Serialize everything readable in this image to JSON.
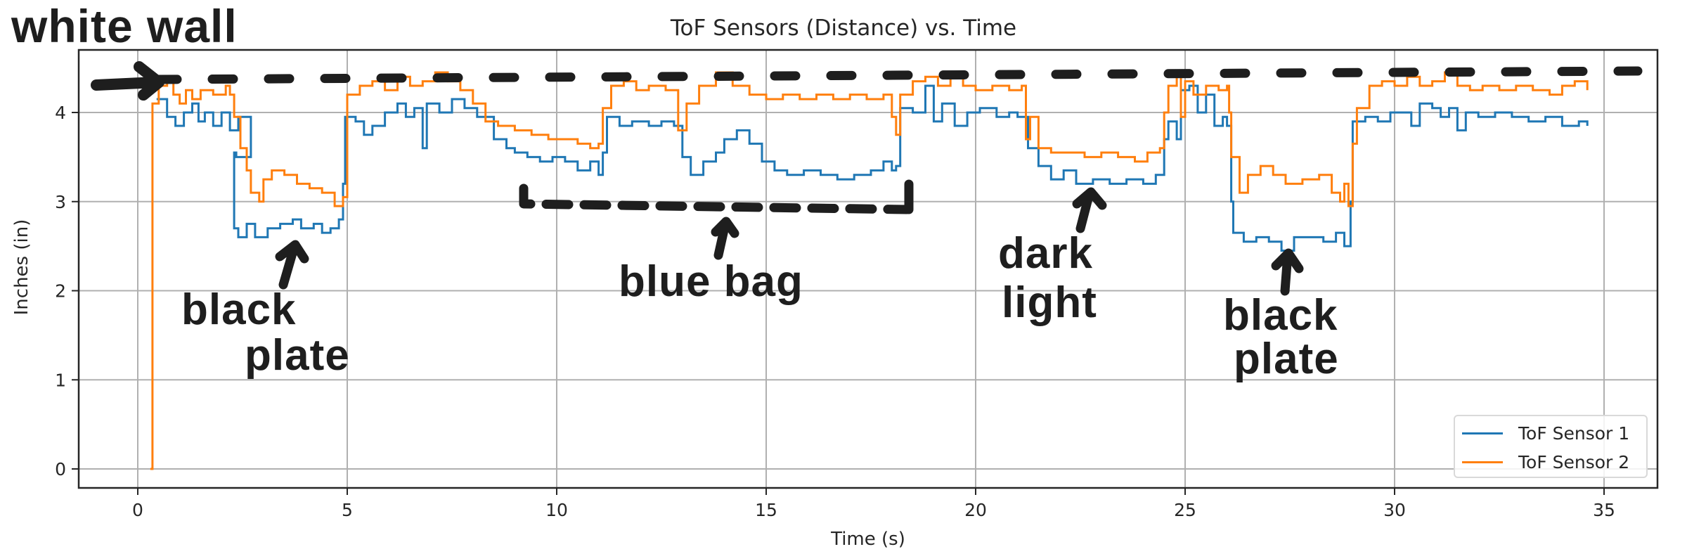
{
  "chart_data": {
    "type": "line",
    "title": "ToF Sensors (Distance) vs. Time",
    "xlabel": "Time (s)",
    "ylabel": "Inches (in)",
    "xlim": [
      -1.4,
      36.3
    ],
    "ylim": [
      -0.22,
      4.69
    ],
    "xticks": [
      0,
      5,
      10,
      15,
      20,
      25,
      30,
      35
    ],
    "yticks": [
      0,
      1,
      2,
      3,
      4
    ],
    "grid": true,
    "legend_position": "lower right",
    "drawstyle": "steps",
    "series": [
      {
        "name": "ToF Sensor 1",
        "color": "#1f77b4",
        "points": [
          [
            0.45,
            4.15
          ],
          [
            0.7,
            3.95
          ],
          [
            0.9,
            3.85
          ],
          [
            1.1,
            4.0
          ],
          [
            1.3,
            4.1
          ],
          [
            1.45,
            3.9
          ],
          [
            1.6,
            4.0
          ],
          [
            1.8,
            3.85
          ],
          [
            2.0,
            4.0
          ],
          [
            2.2,
            3.8
          ],
          [
            2.4,
            3.95
          ],
          [
            2.7,
            3.5
          ],
          [
            2.35,
            3.55
          ],
          [
            2.3,
            2.7
          ],
          [
            2.4,
            2.6
          ],
          [
            2.6,
            2.75
          ],
          [
            2.8,
            2.6
          ],
          [
            3.1,
            2.7
          ],
          [
            3.4,
            2.75
          ],
          [
            3.7,
            2.8
          ],
          [
            3.9,
            2.7
          ],
          [
            4.2,
            2.75
          ],
          [
            4.4,
            2.65
          ],
          [
            4.6,
            2.7
          ],
          [
            4.8,
            2.8
          ],
          [
            4.9,
            3.2
          ],
          [
            4.95,
            3.95
          ],
          [
            5.2,
            3.9
          ],
          [
            5.4,
            3.75
          ],
          [
            5.6,
            3.85
          ],
          [
            5.9,
            4.0
          ],
          [
            6.2,
            4.1
          ],
          [
            6.4,
            3.95
          ],
          [
            6.6,
            4.05
          ],
          [
            6.8,
            3.6
          ],
          [
            6.9,
            4.1
          ],
          [
            7.2,
            4.0
          ],
          [
            7.5,
            4.15
          ],
          [
            7.8,
            4.05
          ],
          [
            8.1,
            3.95
          ],
          [
            8.5,
            3.7
          ],
          [
            8.8,
            3.6
          ],
          [
            9.0,
            3.55
          ],
          [
            9.3,
            3.5
          ],
          [
            9.6,
            3.45
          ],
          [
            9.9,
            3.5
          ],
          [
            10.2,
            3.45
          ],
          [
            10.5,
            3.35
          ],
          [
            10.8,
            3.45
          ],
          [
            11.0,
            3.3
          ],
          [
            11.1,
            3.55
          ],
          [
            11.2,
            3.95
          ],
          [
            11.5,
            3.85
          ],
          [
            11.8,
            3.9
          ],
          [
            12.2,
            3.85
          ],
          [
            12.5,
            3.9
          ],
          [
            12.8,
            3.85
          ],
          [
            13.0,
            3.5
          ],
          [
            13.2,
            3.3
          ],
          [
            13.5,
            3.45
          ],
          [
            13.8,
            3.55
          ],
          [
            14.0,
            3.7
          ],
          [
            14.3,
            3.8
          ],
          [
            14.6,
            3.65
          ],
          [
            14.9,
            3.45
          ],
          [
            15.2,
            3.35
          ],
          [
            15.5,
            3.3
          ],
          [
            15.9,
            3.35
          ],
          [
            16.3,
            3.3
          ],
          [
            16.7,
            3.25
          ],
          [
            17.1,
            3.3
          ],
          [
            17.5,
            3.35
          ],
          [
            17.8,
            3.45
          ],
          [
            18.0,
            3.35
          ],
          [
            18.1,
            3.4
          ],
          [
            18.2,
            4.05
          ],
          [
            18.5,
            4.0
          ],
          [
            18.8,
            4.3
          ],
          [
            19.0,
            3.9
          ],
          [
            19.2,
            4.1
          ],
          [
            19.5,
            3.85
          ],
          [
            19.8,
            4.0
          ],
          [
            20.1,
            4.05
          ],
          [
            20.5,
            3.95
          ],
          [
            20.8,
            4.0
          ],
          [
            21.0,
            3.95
          ],
          [
            21.2,
            3.95
          ],
          [
            21.25,
            3.6
          ],
          [
            21.5,
            3.4
          ],
          [
            21.8,
            3.25
          ],
          [
            22.1,
            3.35
          ],
          [
            22.4,
            3.2
          ],
          [
            22.8,
            3.25
          ],
          [
            23.2,
            3.2
          ],
          [
            23.6,
            3.25
          ],
          [
            24.0,
            3.2
          ],
          [
            24.3,
            3.3
          ],
          [
            24.5,
            3.7
          ],
          [
            24.6,
            3.9
          ],
          [
            24.8,
            3.7
          ],
          [
            24.9,
            4.25
          ],
          [
            25.1,
            4.3
          ],
          [
            25.3,
            4.0
          ],
          [
            25.5,
            4.2
          ],
          [
            25.7,
            3.85
          ],
          [
            25.9,
            3.95
          ],
          [
            26.0,
            3.85
          ],
          [
            26.1,
            3.0
          ],
          [
            26.15,
            2.65
          ],
          [
            26.4,
            2.55
          ],
          [
            26.7,
            2.6
          ],
          [
            27.0,
            2.55
          ],
          [
            27.3,
            2.45
          ],
          [
            27.6,
            2.6
          ],
          [
            27.9,
            2.6
          ],
          [
            28.3,
            2.55
          ],
          [
            28.6,
            2.65
          ],
          [
            28.8,
            2.5
          ],
          [
            28.95,
            3.0
          ],
          [
            29.0,
            3.9
          ],
          [
            29.3,
            3.95
          ],
          [
            29.6,
            3.9
          ],
          [
            29.9,
            4.0
          ],
          [
            30.2,
            4.0
          ],
          [
            30.4,
            3.85
          ],
          [
            30.6,
            4.1
          ],
          [
            30.9,
            4.05
          ],
          [
            31.1,
            3.95
          ],
          [
            31.3,
            4.05
          ],
          [
            31.5,
            3.8
          ],
          [
            31.7,
            4.0
          ],
          [
            32.0,
            3.95
          ],
          [
            32.4,
            4.0
          ],
          [
            32.8,
            3.95
          ],
          [
            33.2,
            3.9
          ],
          [
            33.6,
            3.95
          ],
          [
            34.0,
            3.85
          ],
          [
            34.4,
            3.9
          ],
          [
            34.6,
            3.85
          ]
        ]
      },
      {
        "name": "ToF Sensor 2",
        "color": "#ff7f0e",
        "points": [
          [
            0.3,
            0.0
          ],
          [
            0.35,
            4.1
          ],
          [
            0.5,
            4.3
          ],
          [
            0.7,
            4.4
          ],
          [
            0.85,
            4.2
          ],
          [
            1.0,
            4.1
          ],
          [
            1.15,
            4.25
          ],
          [
            1.3,
            4.15
          ],
          [
            1.5,
            4.25
          ],
          [
            1.8,
            4.2
          ],
          [
            2.1,
            4.3
          ],
          [
            2.2,
            4.2
          ],
          [
            2.3,
            3.95
          ],
          [
            2.45,
            3.6
          ],
          [
            2.6,
            3.35
          ],
          [
            2.7,
            3.1
          ],
          [
            2.9,
            3.0
          ],
          [
            3.0,
            3.25
          ],
          [
            3.2,
            3.35
          ],
          [
            3.5,
            3.3
          ],
          [
            3.8,
            3.2
          ],
          [
            4.1,
            3.15
          ],
          [
            4.4,
            3.1
          ],
          [
            4.7,
            2.95
          ],
          [
            4.9,
            3.05
          ],
          [
            5.0,
            4.2
          ],
          [
            5.3,
            4.3
          ],
          [
            5.6,
            4.35
          ],
          [
            5.9,
            4.25
          ],
          [
            6.2,
            4.4
          ],
          [
            6.5,
            4.3
          ],
          [
            6.8,
            4.35
          ],
          [
            7.1,
            4.45
          ],
          [
            7.4,
            4.35
          ],
          [
            7.7,
            4.25
          ],
          [
            8.0,
            4.1
          ],
          [
            8.3,
            3.9
          ],
          [
            8.6,
            3.85
          ],
          [
            9.0,
            3.8
          ],
          [
            9.4,
            3.75
          ],
          [
            9.8,
            3.7
          ],
          [
            10.2,
            3.7
          ],
          [
            10.5,
            3.65
          ],
          [
            10.8,
            3.6
          ],
          [
            11.0,
            3.65
          ],
          [
            11.1,
            4.05
          ],
          [
            11.3,
            4.3
          ],
          [
            11.6,
            4.35
          ],
          [
            11.9,
            4.25
          ],
          [
            12.2,
            4.3
          ],
          [
            12.6,
            4.25
          ],
          [
            12.9,
            3.8
          ],
          [
            13.1,
            4.1
          ],
          [
            13.4,
            4.3
          ],
          [
            13.8,
            4.45
          ],
          [
            14.2,
            4.3
          ],
          [
            14.6,
            4.2
          ],
          [
            15.0,
            4.15
          ],
          [
            15.4,
            4.2
          ],
          [
            15.8,
            4.15
          ],
          [
            16.2,
            4.2
          ],
          [
            16.6,
            4.15
          ],
          [
            17.0,
            4.2
          ],
          [
            17.4,
            4.15
          ],
          [
            17.8,
            4.2
          ],
          [
            18.0,
            3.95
          ],
          [
            18.1,
            3.75
          ],
          [
            18.2,
            4.2
          ],
          [
            18.5,
            4.35
          ],
          [
            18.8,
            4.4
          ],
          [
            19.1,
            4.3
          ],
          [
            19.4,
            4.4
          ],
          [
            19.7,
            4.3
          ],
          [
            20.0,
            4.25
          ],
          [
            20.4,
            4.3
          ],
          [
            20.8,
            4.25
          ],
          [
            21.1,
            4.3
          ],
          [
            21.2,
            3.7
          ],
          [
            21.3,
            3.95
          ],
          [
            21.5,
            3.6
          ],
          [
            21.8,
            3.55
          ],
          [
            22.2,
            3.55
          ],
          [
            22.6,
            3.5
          ],
          [
            23.0,
            3.55
          ],
          [
            23.4,
            3.5
          ],
          [
            23.8,
            3.45
          ],
          [
            24.1,
            3.55
          ],
          [
            24.4,
            3.6
          ],
          [
            24.5,
            4.0
          ],
          [
            24.6,
            4.3
          ],
          [
            24.8,
            4.4
          ],
          [
            24.9,
            3.95
          ],
          [
            25.0,
            4.35
          ],
          [
            25.2,
            4.2
          ],
          [
            25.5,
            4.3
          ],
          [
            25.8,
            4.25
          ],
          [
            26.0,
            4.3
          ],
          [
            26.05,
            4.0
          ],
          [
            26.1,
            3.5
          ],
          [
            26.3,
            3.1
          ],
          [
            26.5,
            3.3
          ],
          [
            26.8,
            3.4
          ],
          [
            27.1,
            3.3
          ],
          [
            27.4,
            3.2
          ],
          [
            27.8,
            3.25
          ],
          [
            28.2,
            3.3
          ],
          [
            28.5,
            3.1
          ],
          [
            28.7,
            3.0
          ],
          [
            28.8,
            3.2
          ],
          [
            28.9,
            2.95
          ],
          [
            29.0,
            3.65
          ],
          [
            29.1,
            4.05
          ],
          [
            29.4,
            4.3
          ],
          [
            29.7,
            4.35
          ],
          [
            30.0,
            4.3
          ],
          [
            30.3,
            4.4
          ],
          [
            30.6,
            4.3
          ],
          [
            30.9,
            4.35
          ],
          [
            31.2,
            4.45
          ],
          [
            31.5,
            4.3
          ],
          [
            31.8,
            4.25
          ],
          [
            32.1,
            4.3
          ],
          [
            32.5,
            4.25
          ],
          [
            32.9,
            4.3
          ],
          [
            33.3,
            4.25
          ],
          [
            33.7,
            4.2
          ],
          [
            34.0,
            4.3
          ],
          [
            34.3,
            4.35
          ],
          [
            34.6,
            4.25
          ]
        ]
      }
    ],
    "annotations": [
      {
        "text": "white wall",
        "target": "dashed line at ~4.4 in"
      },
      {
        "text": "black plate",
        "target": "dip ~2.3–4.9 s"
      },
      {
        "text": "blue bag",
        "target": "region ~9–18 s"
      },
      {
        "text": "dark light",
        "target": "dip ~21.2–24.5 s"
      },
      {
        "text": "black plate",
        "target": "dip ~26–29 s"
      }
    ]
  },
  "annotations": {
    "white_wall": "white wall",
    "black_plate_1_line1": "black",
    "black_plate_1_line2": "plate",
    "blue_bag": "blue bag",
    "dark_light_line1": "dark",
    "dark_light_line2": "light",
    "black_plate_2_line1": "black",
    "black_plate_2_line2": "plate"
  }
}
